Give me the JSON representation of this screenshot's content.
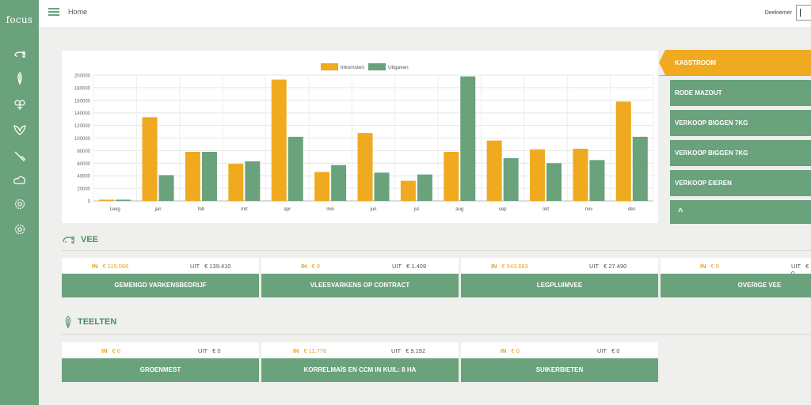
{
  "app": {
    "logo": "focus"
  },
  "topbar": {
    "breadcrumb": "Home",
    "user_label": "Deelnemer"
  },
  "sidebar": {
    "icons": [
      "animals-icon",
      "crops-icon",
      "fruit-icon",
      "leaves-icon",
      "tools-icon",
      "cloud-icon",
      "settings-icon",
      "settings-icon-2"
    ]
  },
  "colors": {
    "accent_green": "#6aa27c",
    "accent_orange": "#efaa20",
    "income": "#efaa20",
    "expense": "#6aa27c"
  },
  "chart_data": {
    "type": "bar",
    "categories": [
      "Leeg",
      "jan",
      "feb",
      "mrt",
      "apr",
      "mei",
      "jun",
      "jul",
      "aug",
      "sep",
      "okt",
      "nov",
      "dec"
    ],
    "series": [
      {
        "name": "Inkomsten",
        "color": "#efaa20",
        "values": [
          2000,
          133000,
          78000,
          59000,
          193000,
          46000,
          108000,
          32000,
          78000,
          96000,
          82000,
          83000,
          158000
        ]
      },
      {
        "name": "Uitgaven",
        "color": "#6aa27c",
        "values": [
          2000,
          41000,
          78000,
          63000,
          102000,
          57000,
          45000,
          42000,
          198000,
          68000,
          60000,
          65000,
          102000
        ]
      }
    ],
    "ylim": [
      0,
      200000
    ],
    "yticks": [
      "0",
      "20000",
      "40000",
      "60000",
      "80000",
      "100000",
      "120000",
      "140000",
      "160000",
      "180000",
      "200000"
    ],
    "legend_position": "top-center",
    "grid": true
  },
  "right_panel": {
    "items": [
      {
        "label": "KASSTROOM",
        "active": true
      },
      {
        "label": "RODE MAZOUT",
        "active": false
      },
      {
        "label": "VERKOOP BIGGEN 7KG",
        "active": false
      },
      {
        "label": "VERKOOP BIGGEN 7KG",
        "active": false
      },
      {
        "label": "VERKOOP EIEREN",
        "active": false
      }
    ],
    "collapse_glyph": "^"
  },
  "vee": {
    "title": "VEE",
    "in_label": "IN",
    "out_label": "UIT",
    "tiles": [
      {
        "in": "€ 115.066",
        "out": "€ 139.410",
        "label": "GEMENGD VARKENSBEDRIJF"
      },
      {
        "in": "€ 0",
        "out": "€ 1.409",
        "label": "VLEESVARKENS OP CONTRACT"
      },
      {
        "in": "€ 543.683",
        "out": "€ 27.490",
        "label": "LEGPLUIMVEE"
      },
      {
        "in": "€ 0",
        "out": "€ 0",
        "label": "OVERIGE VEE"
      }
    ]
  },
  "teelten": {
    "title": "TEELTEN",
    "in_label": "IN",
    "out_label": "UIT",
    "tiles": [
      {
        "in": "€ 0",
        "out": "€ 0",
        "label": "GROENMEST"
      },
      {
        "in": "€ 11.776",
        "out": "€ 9.192",
        "label": "KORRELMAÏS EN CCM IN KUIL: 8 HA"
      },
      {
        "in": "€ 0",
        "out": "€ 0",
        "label": "SUIKERBIETEN"
      }
    ]
  }
}
